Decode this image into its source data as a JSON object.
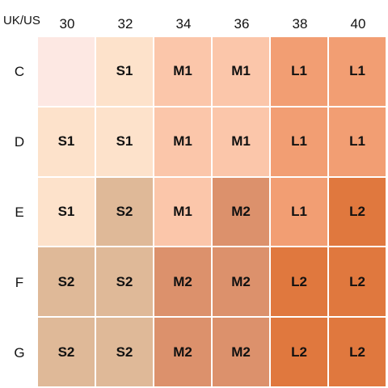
{
  "corner_label": "UK/US",
  "columns": [
    "30",
    "32",
    "34",
    "36",
    "38",
    "40"
  ],
  "rows": [
    "C",
    "D",
    "E",
    "F",
    "G"
  ],
  "cells": [
    [
      "",
      "S1",
      "M1",
      "M1",
      "L1",
      "L1"
    ],
    [
      "S1",
      "S1",
      "M1",
      "M1",
      "L1",
      "L1"
    ],
    [
      "S1",
      "S2",
      "M1",
      "M2",
      "L1",
      "L2"
    ],
    [
      "S2",
      "S2",
      "M2",
      "M2",
      "L2",
      "L2"
    ],
    [
      "S2",
      "S2",
      "M2",
      "M2",
      "L2",
      "L2"
    ]
  ],
  "blank_color": "#fde8e3",
  "size_colors": {
    "S1": "#fde2cb",
    "S2": "#dfb998",
    "M1": "#fbc6aa",
    "M2": "#dc916c",
    "L1": "#f29e73",
    "L2": "#e0783e"
  }
}
